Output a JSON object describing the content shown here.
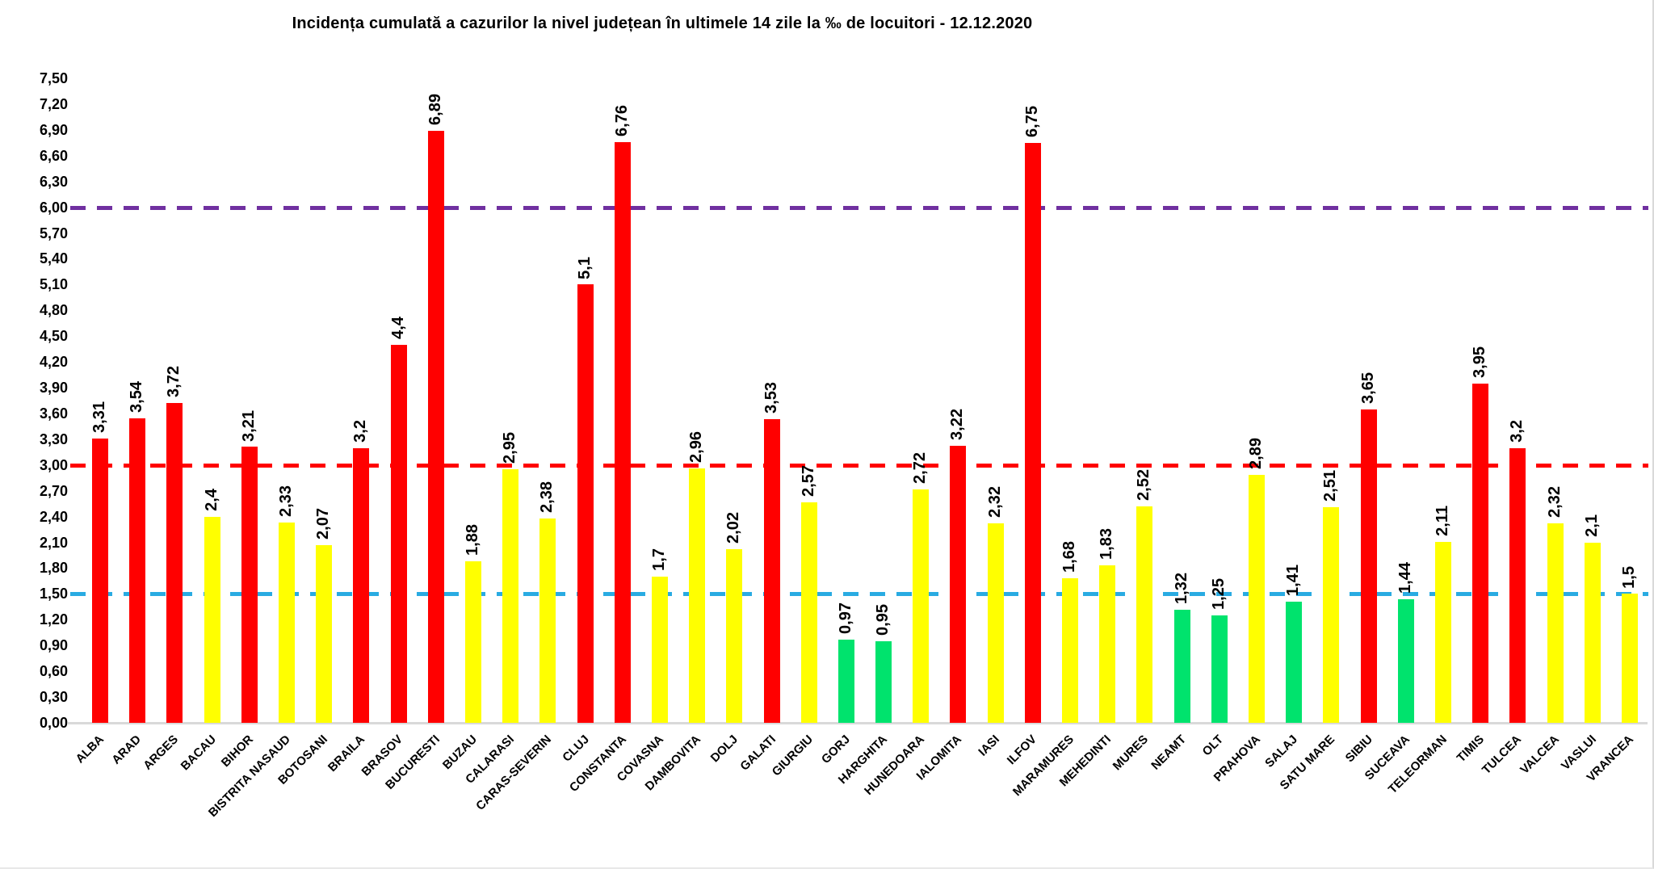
{
  "title": "Incidența cumulată a cazurilor la nivel județean în ultimele 14 zile   la ‰ de locuitori  - 12.12.2020",
  "chart_data": {
    "type": "bar",
    "title": "Incidența cumulată a cazurilor la nivel județean în ultimele 14 zile   la ‰ de locuitori  - 12.12.2020",
    "xlabel": "",
    "ylabel": "",
    "ylim": [
      0,
      7.5
    ],
    "ytick_step": 0.3,
    "ytick_labels": [
      "0,00",
      "0,30",
      "0,60",
      "0,90",
      "1,20",
      "1,50",
      "1,80",
      "2,10",
      "2,40",
      "2,70",
      "3,00",
      "3,30",
      "3,60",
      "3,90",
      "4,20",
      "4,50",
      "4,80",
      "5,10",
      "5,40",
      "5,70",
      "6,00",
      "6,30",
      "6,60",
      "6,90",
      "7,20",
      "7,50"
    ],
    "grid": "off",
    "legend": "none",
    "palette": {
      "red": "#ff0000",
      "yellow": "#ffff00",
      "green": "#00e36d"
    },
    "reference_lines": [
      {
        "value": 1.5,
        "color": "#29abe2",
        "style": "dashed"
      },
      {
        "value": 3.0,
        "color": "#ff0000",
        "style": "dashed"
      },
      {
        "value": 6.0,
        "color": "#7030a0",
        "style": "dashed"
      }
    ],
    "categories": [
      "ALBA",
      "ARAD",
      "ARGES",
      "BACAU",
      "BIHOR",
      "BISTRITA NASAUD",
      "BOTOSANI",
      "BRAILA",
      "BRASOV",
      "BUCURESTI",
      "BUZAU",
      "CALARASI",
      "CARAS-SEVERIN",
      "CLUJ",
      "CONSTANTA",
      "COVASNA",
      "DAMBOVITA",
      "DOLJ",
      "GALATI",
      "GIURGIU",
      "GORJ",
      "HARGHITA",
      "HUNEDOARA",
      "IALOMITA",
      "IASI",
      "ILFOV",
      "MARAMURES",
      "MEHEDINTI",
      "MURES",
      "NEAMT",
      "OLT",
      "PRAHOVA",
      "SALAJ",
      "SATU MARE",
      "SIBIU",
      "SUCEAVA",
      "TELEORMAN",
      "TIMIS",
      "TULCEA",
      "VALCEA",
      "VASLUI",
      "VRANCEA"
    ],
    "values": [
      3.31,
      3.54,
      3.72,
      2.4,
      3.21,
      2.33,
      2.07,
      3.2,
      4.4,
      6.89,
      1.88,
      2.95,
      2.38,
      5.1,
      6.76,
      1.7,
      2.96,
      2.02,
      3.53,
      2.57,
      0.97,
      0.95,
      2.72,
      3.22,
      2.32,
      6.75,
      1.68,
      1.83,
      2.52,
      1.32,
      1.25,
      2.89,
      1.41,
      2.51,
      3.65,
      1.44,
      2.11,
      3.95,
      3.2,
      2.32,
      2.1,
      1.5
    ],
    "value_labels": [
      "3,31",
      "3,54",
      "3,72",
      "2,4",
      "3,21",
      "2,33",
      "2,07",
      "3,2",
      "4,4",
      "6,89",
      "1,88",
      "2,95",
      "2,38",
      "5,1",
      "6,76",
      "1,7",
      "2,96",
      "2,02",
      "3,53",
      "2,57",
      "0,97",
      "0,95",
      "2,72",
      "3,22",
      "2,32",
      "6,75",
      "1,68",
      "1,83",
      "2,52",
      "1,32",
      "1,25",
      "2,89",
      "1,41",
      "2,51",
      "3,65",
      "1,44",
      "2,11",
      "3,95",
      "3,2",
      "2,32",
      "2,1",
      "1,5"
    ],
    "bar_color_keys": [
      "red",
      "red",
      "red",
      "yellow",
      "red",
      "yellow",
      "yellow",
      "red",
      "red",
      "red",
      "yellow",
      "yellow",
      "yellow",
      "red",
      "red",
      "yellow",
      "yellow",
      "yellow",
      "red",
      "yellow",
      "green",
      "green",
      "yellow",
      "red",
      "yellow",
      "red",
      "yellow",
      "yellow",
      "yellow",
      "green",
      "green",
      "yellow",
      "green",
      "yellow",
      "red",
      "green",
      "yellow",
      "red",
      "red",
      "yellow",
      "yellow",
      "yellow"
    ]
  }
}
